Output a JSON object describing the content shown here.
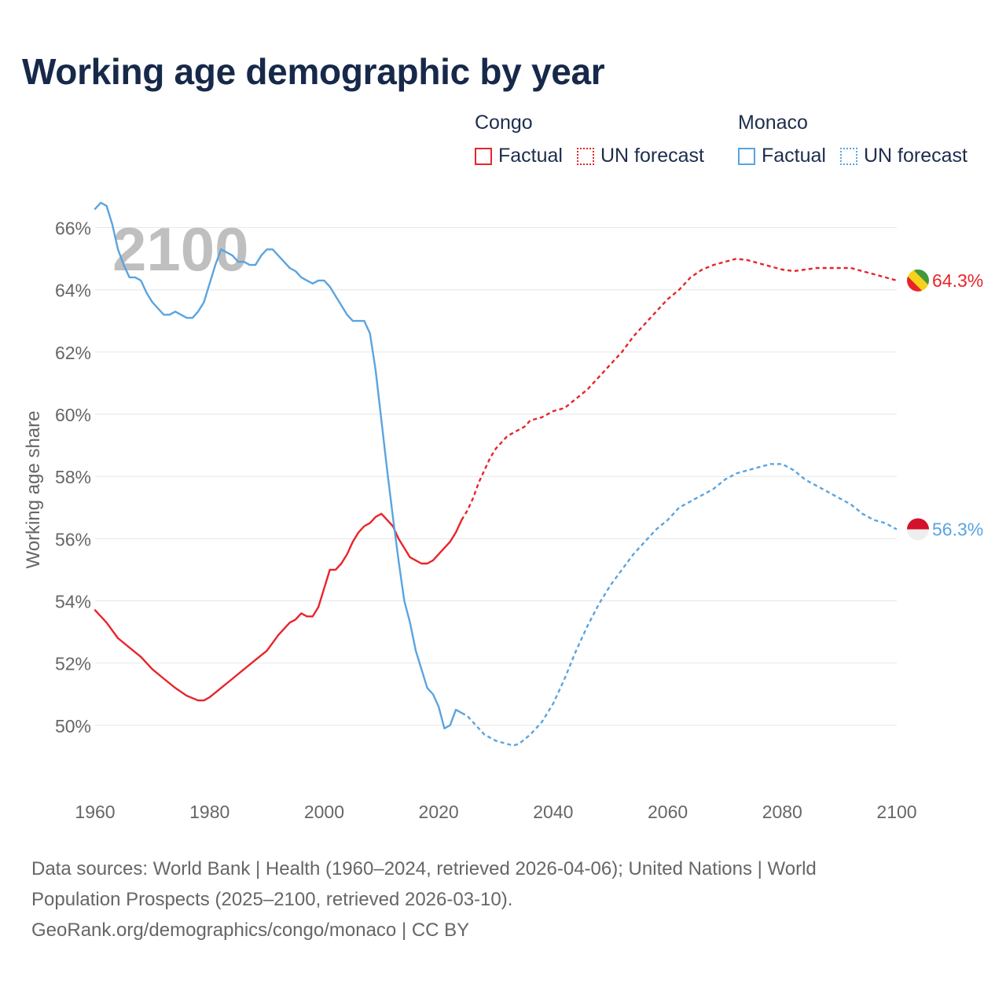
{
  "title": "Working age demographic by year",
  "legend": {
    "groups": [
      {
        "name": "Congo",
        "factual_label": "Factual",
        "forecast_label": "UN forecast",
        "color": "#e8242b"
      },
      {
        "name": "Monaco",
        "factual_label": "Factual",
        "forecast_label": "UN forecast",
        "color": "#5aa4e0"
      }
    ]
  },
  "year_watermark": "2100",
  "footer": {
    "line1": "Data sources: World Bank | Health (1960–2024, retrieved 2026-04-06); United Nations | World",
    "line2": "Population Prospects (2025–2100, retrieved 2026-03-10).",
    "line3": "GeoRank.org/demographics/congo/monaco | CC BY"
  },
  "chart_data": {
    "type": "line",
    "title": "Working age demographic by year",
    "xlabel": "",
    "ylabel": "Working age share",
    "xlim": [
      1960,
      2100
    ],
    "ylim": [
      48,
      67
    ],
    "x_ticks": [
      1960,
      1980,
      2000,
      2020,
      2040,
      2060,
      2080,
      2100
    ],
    "x_tick_labels": [
      "1960",
      "1980",
      "2000",
      "2020",
      "2040",
      "2060",
      "2080",
      "2100"
    ],
    "y_ticks": [
      50,
      52,
      54,
      56,
      58,
      60,
      62,
      64,
      66
    ],
    "y_tick_labels": [
      "50%",
      "52%",
      "54%",
      "56%",
      "58%",
      "60%",
      "62%",
      "64%",
      "66%"
    ],
    "grid": true,
    "factual_end_year": 2024,
    "series": [
      {
        "name": "Congo",
        "color": "#e8242b",
        "end_label": "64.3%",
        "points": [
          [
            1960,
            53.7
          ],
          [
            1962,
            53.3
          ],
          [
            1964,
            52.8
          ],
          [
            1966,
            52.5
          ],
          [
            1968,
            52.2
          ],
          [
            1970,
            51.8
          ],
          [
            1972,
            51.5
          ],
          [
            1974,
            51.2
          ],
          [
            1976,
            50.95
          ],
          [
            1978,
            50.8
          ],
          [
            1979,
            50.8
          ],
          [
            1980,
            50.9
          ],
          [
            1982,
            51.2
          ],
          [
            1984,
            51.5
          ],
          [
            1986,
            51.8
          ],
          [
            1988,
            52.1
          ],
          [
            1990,
            52.4
          ],
          [
            1992,
            52.9
          ],
          [
            1994,
            53.3
          ],
          [
            1995,
            53.4
          ],
          [
            1996,
            53.6
          ],
          [
            1997,
            53.5
          ],
          [
            1998,
            53.5
          ],
          [
            1999,
            53.8
          ],
          [
            2000,
            54.4
          ],
          [
            2001,
            55.0
          ],
          [
            2002,
            55.0
          ],
          [
            2003,
            55.2
          ],
          [
            2004,
            55.5
          ],
          [
            2005,
            55.9
          ],
          [
            2006,
            56.2
          ],
          [
            2007,
            56.4
          ],
          [
            2008,
            56.5
          ],
          [
            2009,
            56.7
          ],
          [
            2010,
            56.8
          ],
          [
            2011,
            56.6
          ],
          [
            2012,
            56.4
          ],
          [
            2013,
            56.0
          ],
          [
            2014,
            55.7
          ],
          [
            2015,
            55.4
          ],
          [
            2016,
            55.3
          ],
          [
            2017,
            55.2
          ],
          [
            2018,
            55.2
          ],
          [
            2019,
            55.3
          ],
          [
            2020,
            55.5
          ],
          [
            2021,
            55.7
          ],
          [
            2022,
            55.9
          ],
          [
            2023,
            56.2
          ],
          [
            2024,
            56.6
          ],
          [
            2025,
            56.9
          ],
          [
            2026,
            57.3
          ],
          [
            2027,
            57.8
          ],
          [
            2028,
            58.2
          ],
          [
            2029,
            58.6
          ],
          [
            2030,
            58.9
          ],
          [
            2031,
            59.1
          ],
          [
            2032,
            59.3
          ],
          [
            2033,
            59.4
          ],
          [
            2034,
            59.5
          ],
          [
            2035,
            59.6
          ],
          [
            2036,
            59.8
          ],
          [
            2037,
            59.85
          ],
          [
            2038,
            59.9
          ],
          [
            2039,
            60.0
          ],
          [
            2040,
            60.1
          ],
          [
            2042,
            60.2
          ],
          [
            2044,
            60.5
          ],
          [
            2046,
            60.8
          ],
          [
            2048,
            61.2
          ],
          [
            2050,
            61.6
          ],
          [
            2052,
            62.0
          ],
          [
            2054,
            62.5
          ],
          [
            2056,
            62.9
          ],
          [
            2058,
            63.3
          ],
          [
            2060,
            63.7
          ],
          [
            2062,
            64.0
          ],
          [
            2064,
            64.4
          ],
          [
            2066,
            64.65
          ],
          [
            2068,
            64.8
          ],
          [
            2070,
            64.9
          ],
          [
            2072,
            65.0
          ],
          [
            2074,
            64.95
          ],
          [
            2076,
            64.85
          ],
          [
            2078,
            64.75
          ],
          [
            2080,
            64.65
          ],
          [
            2082,
            64.6
          ],
          [
            2084,
            64.65
          ],
          [
            2086,
            64.7
          ],
          [
            2088,
            64.7
          ],
          [
            2090,
            64.7
          ],
          [
            2092,
            64.7
          ],
          [
            2094,
            64.6
          ],
          [
            2096,
            64.5
          ],
          [
            2098,
            64.4
          ],
          [
            2100,
            64.3
          ]
        ]
      },
      {
        "name": "Monaco",
        "color": "#5aa4e0",
        "end_label": "56.3%",
        "points": [
          [
            1960,
            66.6
          ],
          [
            1961,
            66.8
          ],
          [
            1962,
            66.7
          ],
          [
            1963,
            66.1
          ],
          [
            1964,
            65.3
          ],
          [
            1965,
            64.8
          ],
          [
            1966,
            64.4
          ],
          [
            1967,
            64.4
          ],
          [
            1968,
            64.3
          ],
          [
            1969,
            63.9
          ],
          [
            1970,
            63.6
          ],
          [
            1971,
            63.4
          ],
          [
            1972,
            63.2
          ],
          [
            1973,
            63.2
          ],
          [
            1974,
            63.3
          ],
          [
            1975,
            63.2
          ],
          [
            1976,
            63.1
          ],
          [
            1977,
            63.1
          ],
          [
            1978,
            63.3
          ],
          [
            1979,
            63.6
          ],
          [
            1980,
            64.2
          ],
          [
            1981,
            64.8
          ],
          [
            1982,
            65.3
          ],
          [
            1983,
            65.2
          ],
          [
            1984,
            65.1
          ],
          [
            1985,
            64.9
          ],
          [
            1986,
            64.9
          ],
          [
            1987,
            64.8
          ],
          [
            1988,
            64.8
          ],
          [
            1989,
            65.1
          ],
          [
            1990,
            65.3
          ],
          [
            1991,
            65.3
          ],
          [
            1992,
            65.1
          ],
          [
            1993,
            64.9
          ],
          [
            1994,
            64.7
          ],
          [
            1995,
            64.6
          ],
          [
            1996,
            64.4
          ],
          [
            1997,
            64.3
          ],
          [
            1998,
            64.2
          ],
          [
            1999,
            64.3
          ],
          [
            2000,
            64.3
          ],
          [
            2001,
            64.1
          ],
          [
            2002,
            63.8
          ],
          [
            2003,
            63.5
          ],
          [
            2004,
            63.2
          ],
          [
            2005,
            63.0
          ],
          [
            2006,
            63.0
          ],
          [
            2007,
            63.0
          ],
          [
            2008,
            62.6
          ],
          [
            2009,
            61.4
          ],
          [
            2010,
            59.8
          ],
          [
            2011,
            58.2
          ],
          [
            2012,
            56.7
          ],
          [
            2013,
            55.3
          ],
          [
            2014,
            54.0
          ],
          [
            2015,
            53.3
          ],
          [
            2016,
            52.4
          ],
          [
            2017,
            51.8
          ],
          [
            2018,
            51.2
          ],
          [
            2019,
            51.0
          ],
          [
            2020,
            50.6
          ],
          [
            2021,
            49.9
          ],
          [
            2022,
            50.0
          ],
          [
            2023,
            50.5
          ],
          [
            2024,
            50.4
          ],
          [
            2025,
            50.3
          ],
          [
            2026,
            50.1
          ],
          [
            2027,
            49.9
          ],
          [
            2028,
            49.7
          ],
          [
            2030,
            49.5
          ],
          [
            2032,
            49.4
          ],
          [
            2033,
            49.35
          ],
          [
            2034,
            49.4
          ],
          [
            2036,
            49.7
          ],
          [
            2038,
            50.1
          ],
          [
            2040,
            50.7
          ],
          [
            2042,
            51.5
          ],
          [
            2044,
            52.4
          ],
          [
            2046,
            53.2
          ],
          [
            2048,
            53.9
          ],
          [
            2050,
            54.5
          ],
          [
            2052,
            55.0
          ],
          [
            2054,
            55.5
          ],
          [
            2056,
            55.9
          ],
          [
            2058,
            56.3
          ],
          [
            2060,
            56.6
          ],
          [
            2062,
            57.0
          ],
          [
            2064,
            57.2
          ],
          [
            2066,
            57.4
          ],
          [
            2068,
            57.6
          ],
          [
            2070,
            57.9
          ],
          [
            2072,
            58.1
          ],
          [
            2074,
            58.2
          ],
          [
            2076,
            58.3
          ],
          [
            2078,
            58.4
          ],
          [
            2080,
            58.4
          ],
          [
            2082,
            58.2
          ],
          [
            2084,
            57.9
          ],
          [
            2086,
            57.7
          ],
          [
            2088,
            57.5
          ],
          [
            2090,
            57.3
          ],
          [
            2092,
            57.1
          ],
          [
            2094,
            56.8
          ],
          [
            2096,
            56.6
          ],
          [
            2098,
            56.5
          ],
          [
            2100,
            56.3
          ]
        ]
      }
    ]
  }
}
